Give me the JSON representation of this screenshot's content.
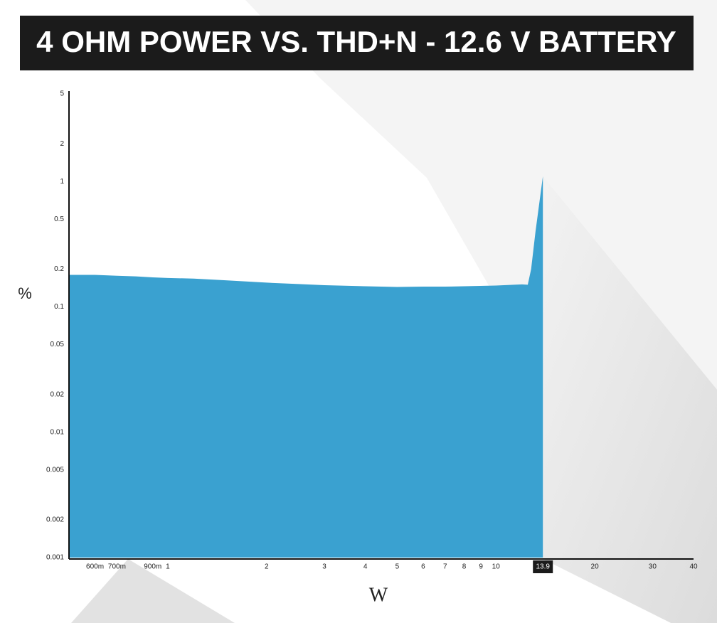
{
  "chart_data": {
    "type": "area",
    "title": "4 OHM POWER VS. THD+N - 12.6 V BATTERY",
    "x_label": "W",
    "y_label": "%",
    "x_scale": "log",
    "y_scale": "log",
    "color": "#3aa1d0",
    "x": [
      0.5,
      0.6,
      0.7,
      0.8,
      0.9,
      1,
      1.2,
      1.5,
      2,
      2.5,
      3,
      4,
      5,
      6,
      7,
      8,
      10,
      12,
      12.5,
      12.8,
      13.2,
      13.9
    ],
    "values": [
      0.18,
      0.18,
      0.177,
      0.175,
      0.172,
      0.17,
      0.168,
      0.163,
      0.156,
      0.152,
      0.149,
      0.146,
      0.144,
      0.145,
      0.145,
      0.146,
      0.148,
      0.151,
      0.15,
      0.2,
      0.4,
      1.1
    ],
    "xlim": [
      0.5,
      40
    ],
    "ylim": [
      0.001,
      5
    ],
    "xticks": [
      {
        "value": 0.6,
        "label": "600m"
      },
      {
        "value": 0.7,
        "label": "700m"
      },
      {
        "value": 0.9,
        "label": "900m"
      },
      1,
      2,
      3,
      4,
      5,
      6,
      7,
      8,
      9,
      10,
      20,
      30,
      40
    ],
    "yticks": [
      0.001,
      0.002,
      0.005,
      0.01,
      0.02,
      0.05,
      0.1,
      0.2,
      0.5,
      1,
      2,
      5
    ],
    "x_marker": 13.9
  }
}
